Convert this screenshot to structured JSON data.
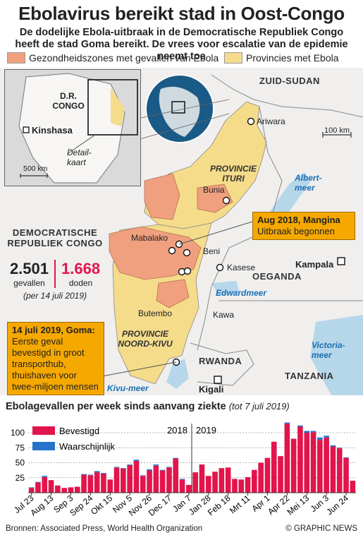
{
  "header": {
    "title": "Ebolavirus bereikt stad in Oost-Congo",
    "subtitle": "De dodelijke Ebola-uitbraak in de Democratische Republiek Congo heeft de stad Goma bereikt. De vrees voor escalatie van de epidemie neemt toe"
  },
  "legend": {
    "zones": "Gezondheidszones met gevallen van Ebola",
    "provinces": "Provincies met Ebola",
    "zones_color": "#f0a07e",
    "provinces_color": "#f5dc8a"
  },
  "inset": {
    "country": "D.R. CONGO",
    "capital": "Kinshasa",
    "detail": "Detail- kaart",
    "scale": "500 km"
  },
  "map": {
    "scale": "100 km",
    "countries": {
      "south_sudan": "ZUID-SUDAN",
      "drc": "DEMOCRATISCHE REPUBLIEK CONGO",
      "uganda": "OEGANDA",
      "rwanda": "RWANDA",
      "tanzania": "TANZANIA"
    },
    "provinces": {
      "ituri": "PROVINCIE ITURI",
      "north_kivu": "PROVINCIE NOORD-KIVU"
    },
    "cities": {
      "ariwara": "Ariwara",
      "bunia": "Bunia",
      "mabalako": "Mabalako",
      "beni": "Beni",
      "kasese": "Kasese",
      "butembo": "Butembo",
      "kawa": "Kawa",
      "kampala": "Kampala",
      "kigali": "Kigali"
    },
    "lakes": {
      "albert": "Albert- meer",
      "edward": "Edwardmeer",
      "victoria": "Victoria- meer",
      "kivu": "Kivu-meer"
    },
    "callout_mangina": {
      "heading": "Aug 2018, Mangina",
      "text": "Uitbraak begonnen"
    },
    "callout_goma": {
      "heading": "14 juli 2019, Goma:",
      "text": "Eerste geval bevestigd in groot transporthub, thuishaven voor twee-miljoen mensen"
    },
    "stats": {
      "cases": "2.501",
      "cases_label": "gevallen",
      "deaths": "1.668",
      "deaths_label": "doden",
      "date_note": "(per 14 juli 2019)"
    }
  },
  "chart_title": "Ebolagevallen per week sinds aanvang ziekte",
  "chart_note": "(tot 7 juli 2019)",
  "chart_data": {
    "type": "bar",
    "yticks": [
      25,
      50,
      75,
      100
    ],
    "ylim": [
      0,
      120
    ],
    "xtick_labels": [
      "Jul 23",
      "Aug 13",
      "Sep 3",
      "Sep 24",
      "Okt 15",
      "Nov 5",
      "Nov 26",
      "Dec 17",
      "Jan 7",
      "Jan 28",
      "Feb 18",
      "Mrt 11",
      "Apr 1",
      "Apr 22",
      "Mei 13",
      "Jun 3",
      "Jun 24"
    ],
    "year_labels": [
      "2018",
      "2019"
    ],
    "series": [
      {
        "name": "Bevestigd",
        "color": "#e2144c",
        "values": [
          8,
          17,
          26,
          21,
          12,
          8,
          9,
          10,
          30,
          29,
          34,
          32,
          22,
          42,
          40,
          46,
          53,
          28,
          37,
          45,
          37,
          42,
          57,
          22,
          13,
          34,
          47,
          28,
          35,
          41,
          42,
          23,
          22,
          26,
          38,
          50,
          58,
          85,
          61,
          115,
          90,
          110,
          100,
          101,
          88,
          92,
          77,
          74,
          58,
          20
        ]
      },
      {
        "name": "Waarschijnlijk",
        "color": "#2673c9",
        "values": [
          1,
          1,
          2,
          0,
          0,
          0,
          0,
          0,
          1,
          1,
          2,
          1,
          0,
          1,
          1,
          1,
          2,
          1,
          2,
          2,
          1,
          1,
          1,
          1,
          0,
          0,
          0,
          0,
          0,
          0,
          0,
          0,
          0,
          0,
          0,
          0,
          0,
          0,
          0,
          2,
          0,
          2,
          3,
          2,
          4,
          3,
          2,
          1,
          1,
          0
        ]
      }
    ]
  },
  "footer": {
    "sources": "Bronnen: Associated Press, World Health Organization",
    "credit": "© GRAPHIC NEWS"
  }
}
